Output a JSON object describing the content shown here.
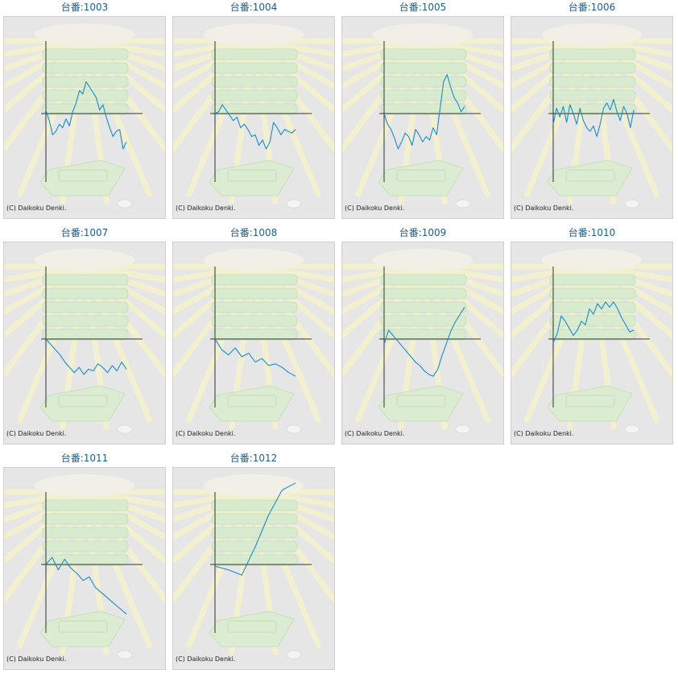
{
  "colors": {
    "line": "#1a8ccc",
    "axis": "#333333",
    "panel": "#e6e6e6",
    "title": "#1e5f8a"
  },
  "copyright": "(C) Daikoku Denki.",
  "chart_data": [
    {
      "type": "line",
      "title": "台番:1003",
      "values": [
        0.2,
        -0.4,
        -1.2,
        -1.0,
        -0.6,
        -0.8,
        -0.3,
        -0.7,
        0.1,
        0.6,
        1.3,
        1.1,
        1.8,
        1.5,
        1.2,
        0.9,
        0.2,
        0.5,
        -0.2,
        -0.8,
        -1.3,
        -1.0,
        -0.9,
        -2.0,
        -1.6
      ]
    },
    {
      "type": "line",
      "title": "台番:1004",
      "values": [
        0.0,
        0.1,
        0.5,
        0.2,
        -0.1,
        -0.4,
        -0.2,
        -0.8,
        -0.6,
        -0.9,
        -1.3,
        -1.2,
        -1.8,
        -1.5,
        -2.0,
        -1.6,
        -0.5,
        -0.8,
        -1.2,
        -0.9,
        -1.0,
        -1.1,
        -0.9
      ]
    },
    {
      "type": "line",
      "title": "台番:1005",
      "values": [
        0.0,
        -0.6,
        -0.9,
        -1.4,
        -2.0,
        -1.6,
        -1.1,
        -1.3,
        -1.8,
        -0.9,
        -1.2,
        -1.6,
        -1.3,
        -1.5,
        -0.8,
        -1.2,
        0.3,
        1.8,
        2.2,
        1.5,
        0.9,
        0.6,
        0.1,
        0.4
      ]
    },
    {
      "type": "line",
      "title": "台番:1006",
      "values": [
        -0.6,
        0.3,
        -0.2,
        0.4,
        -0.5,
        0.5,
        0.0,
        -0.6,
        0.3,
        -0.4,
        -0.8,
        -1.0,
        -0.7,
        -1.3,
        -0.6,
        0.3,
        0.6,
        0.2,
        0.8,
        0.1,
        -0.4,
        0.4,
        0.0,
        -0.8,
        0.2
      ]
    },
    {
      "type": "line",
      "title": "台番:1007",
      "values": [
        0.0,
        -0.3,
        -0.6,
        -0.9,
        -1.3,
        -1.6,
        -1.9,
        -1.6,
        -2.0,
        -1.7,
        -1.8,
        -1.4,
        -1.6,
        -1.9,
        -1.5,
        -1.8,
        -1.3,
        -1.7
      ]
    },
    {
      "type": "line",
      "title": "台番:1008",
      "values": [
        0.0,
        -0.6,
        -0.9,
        -0.5,
        -1.0,
        -0.8,
        -1.3,
        -1.1,
        -1.5,
        -1.4,
        -1.6,
        -1.9,
        -2.1
      ]
    },
    {
      "type": "line",
      "title": "台番:1009",
      "values": [
        -0.3,
        0.5,
        0.2,
        -0.1,
        -0.4,
        -0.7,
        -1.0,
        -1.3,
        -1.5,
        -1.8,
        -2.0,
        -2.1,
        -1.7,
        -0.9,
        -0.2,
        0.5,
        1.0,
        1.4,
        1.8
      ]
    },
    {
      "type": "line",
      "title": "台番:1010",
      "values": [
        -0.2,
        0.3,
        1.3,
        1.0,
        0.6,
        0.2,
        0.5,
        1.0,
        0.8,
        1.7,
        1.4,
        2.0,
        1.7,
        2.1,
        1.8,
        2.1,
        1.7,
        1.2,
        0.8,
        0.4,
        0.5
      ]
    },
    {
      "type": "line",
      "title": "台番:1011",
      "values": [
        0.0,
        0.4,
        -0.3,
        0.3,
        -0.2,
        -0.5,
        -0.9,
        -0.7,
        -1.3,
        -1.6,
        -1.9,
        -2.2,
        -2.5,
        -2.8
      ]
    },
    {
      "type": "line",
      "title": "台番:1012",
      "values": [
        -0.1,
        -0.3,
        -0.6,
        1.0,
        2.8,
        4.2,
        4.6
      ]
    }
  ]
}
